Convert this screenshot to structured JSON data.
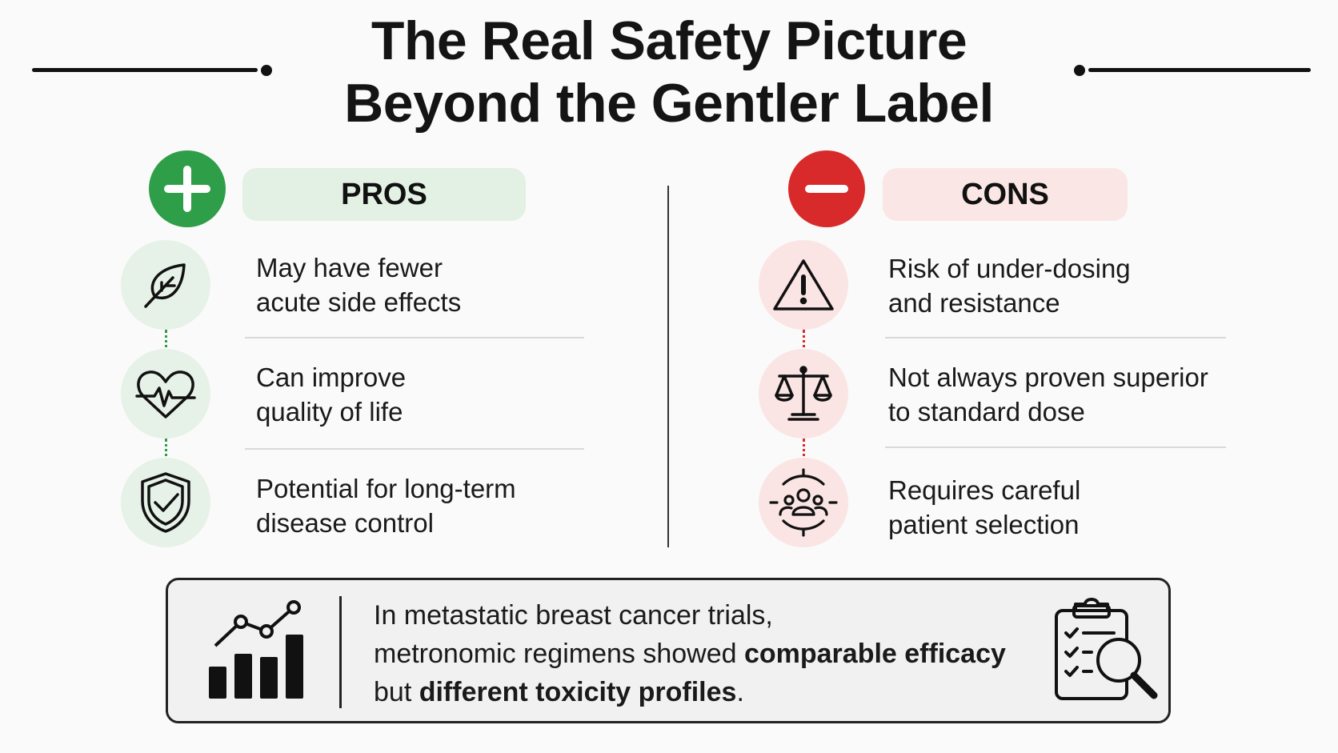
{
  "title": {
    "line1": "The Real Safety Picture",
    "line2": "Beyond the Gentler Label"
  },
  "colors": {
    "pro_green": "#2e9e48",
    "pro_light": "#e6f1e7",
    "con_red": "#d82a2a",
    "con_light": "#fbe4e4"
  },
  "pros": {
    "heading": "PROS",
    "icon": "plus-icon",
    "items": [
      {
        "icon": "leaf-icon",
        "line1": "May have fewer",
        "line2": "acute side effects"
      },
      {
        "icon": "heart-pulse-icon",
        "line1": "Can improve",
        "line2": "quality of life"
      },
      {
        "icon": "shield-check-icon",
        "line1": "Potential for long-term",
        "line2": "disease control"
      }
    ]
  },
  "cons": {
    "heading": "CONS",
    "icon": "minus-icon",
    "items": [
      {
        "icon": "warning-icon",
        "line1": "Risk of under-dosing",
        "line2": "and resistance"
      },
      {
        "icon": "scales-icon",
        "line1": "Not always proven superior",
        "line2": "to standard dose"
      },
      {
        "icon": "patient-target-icon",
        "line1": "Requires careful",
        "line2": "patient selection"
      }
    ]
  },
  "callout": {
    "line1": "In metastatic breast cancer trials,",
    "line2_prefix": "metronomic regimens showed ",
    "line2_bold": "comparable efficacy",
    "line3_prefix": "but ",
    "line3_bold": "different toxicity profiles",
    "line3_suffix": ".",
    "left_icon": "growth-chart-icon",
    "right_icon": "clipboard-search-icon"
  }
}
